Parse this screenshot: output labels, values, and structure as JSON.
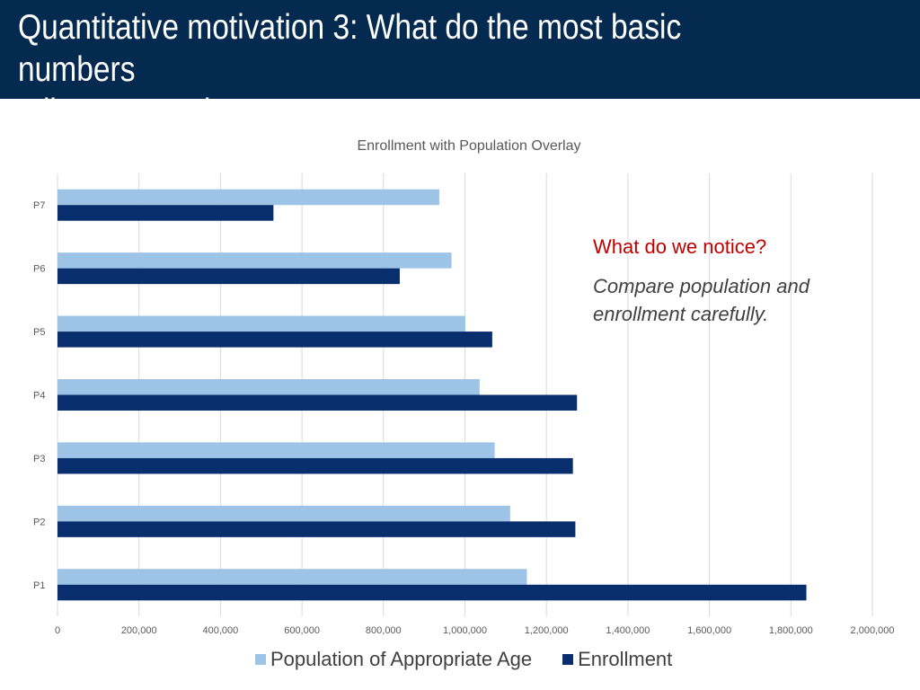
{
  "slide": {
    "title": "Quantitative motivation 3: What do the most basic numbers\ntell us? Uganda case"
  },
  "callout": {
    "heading": "What do we notice?",
    "body": "Compare population and enrollment carefully."
  },
  "colors": {
    "header_bg": "#052a4f",
    "population": "#9dc3e6",
    "enrollment": "#082e6e",
    "grid": "#d9d9d9",
    "callout_heading": "#c00000"
  },
  "chart_data": {
    "type": "bar",
    "orientation": "horizontal",
    "title": "Enrollment with Population Overlay",
    "categories": [
      "P7",
      "P6",
      "P5",
      "P4",
      "P3",
      "P2",
      "P1"
    ],
    "series": [
      {
        "name": "Population of Appropriate Age",
        "color": "#9dc3e6",
        "values": [
          937000,
          967000,
          1001000,
          1036000,
          1073000,
          1111000,
          1152000
        ]
      },
      {
        "name": "Enrollment",
        "color": "#082e6e",
        "values": [
          530000,
          840000,
          1067000,
          1275000,
          1265000,
          1271000,
          1838000
        ]
      }
    ],
    "xlim": [
      0,
      2000000
    ],
    "xticks": [
      0,
      200000,
      400000,
      600000,
      800000,
      1000000,
      1200000,
      1400000,
      1600000,
      1800000,
      2000000
    ],
    "xtick_labels": [
      "0",
      "200,000",
      "400,000",
      "600,000",
      "800,000",
      "1,000,000",
      "1,200,000",
      "1,400,000",
      "1,600,000",
      "1,800,000",
      "2,000,000"
    ],
    "grid": "vertical",
    "legend_position": "bottom"
  }
}
